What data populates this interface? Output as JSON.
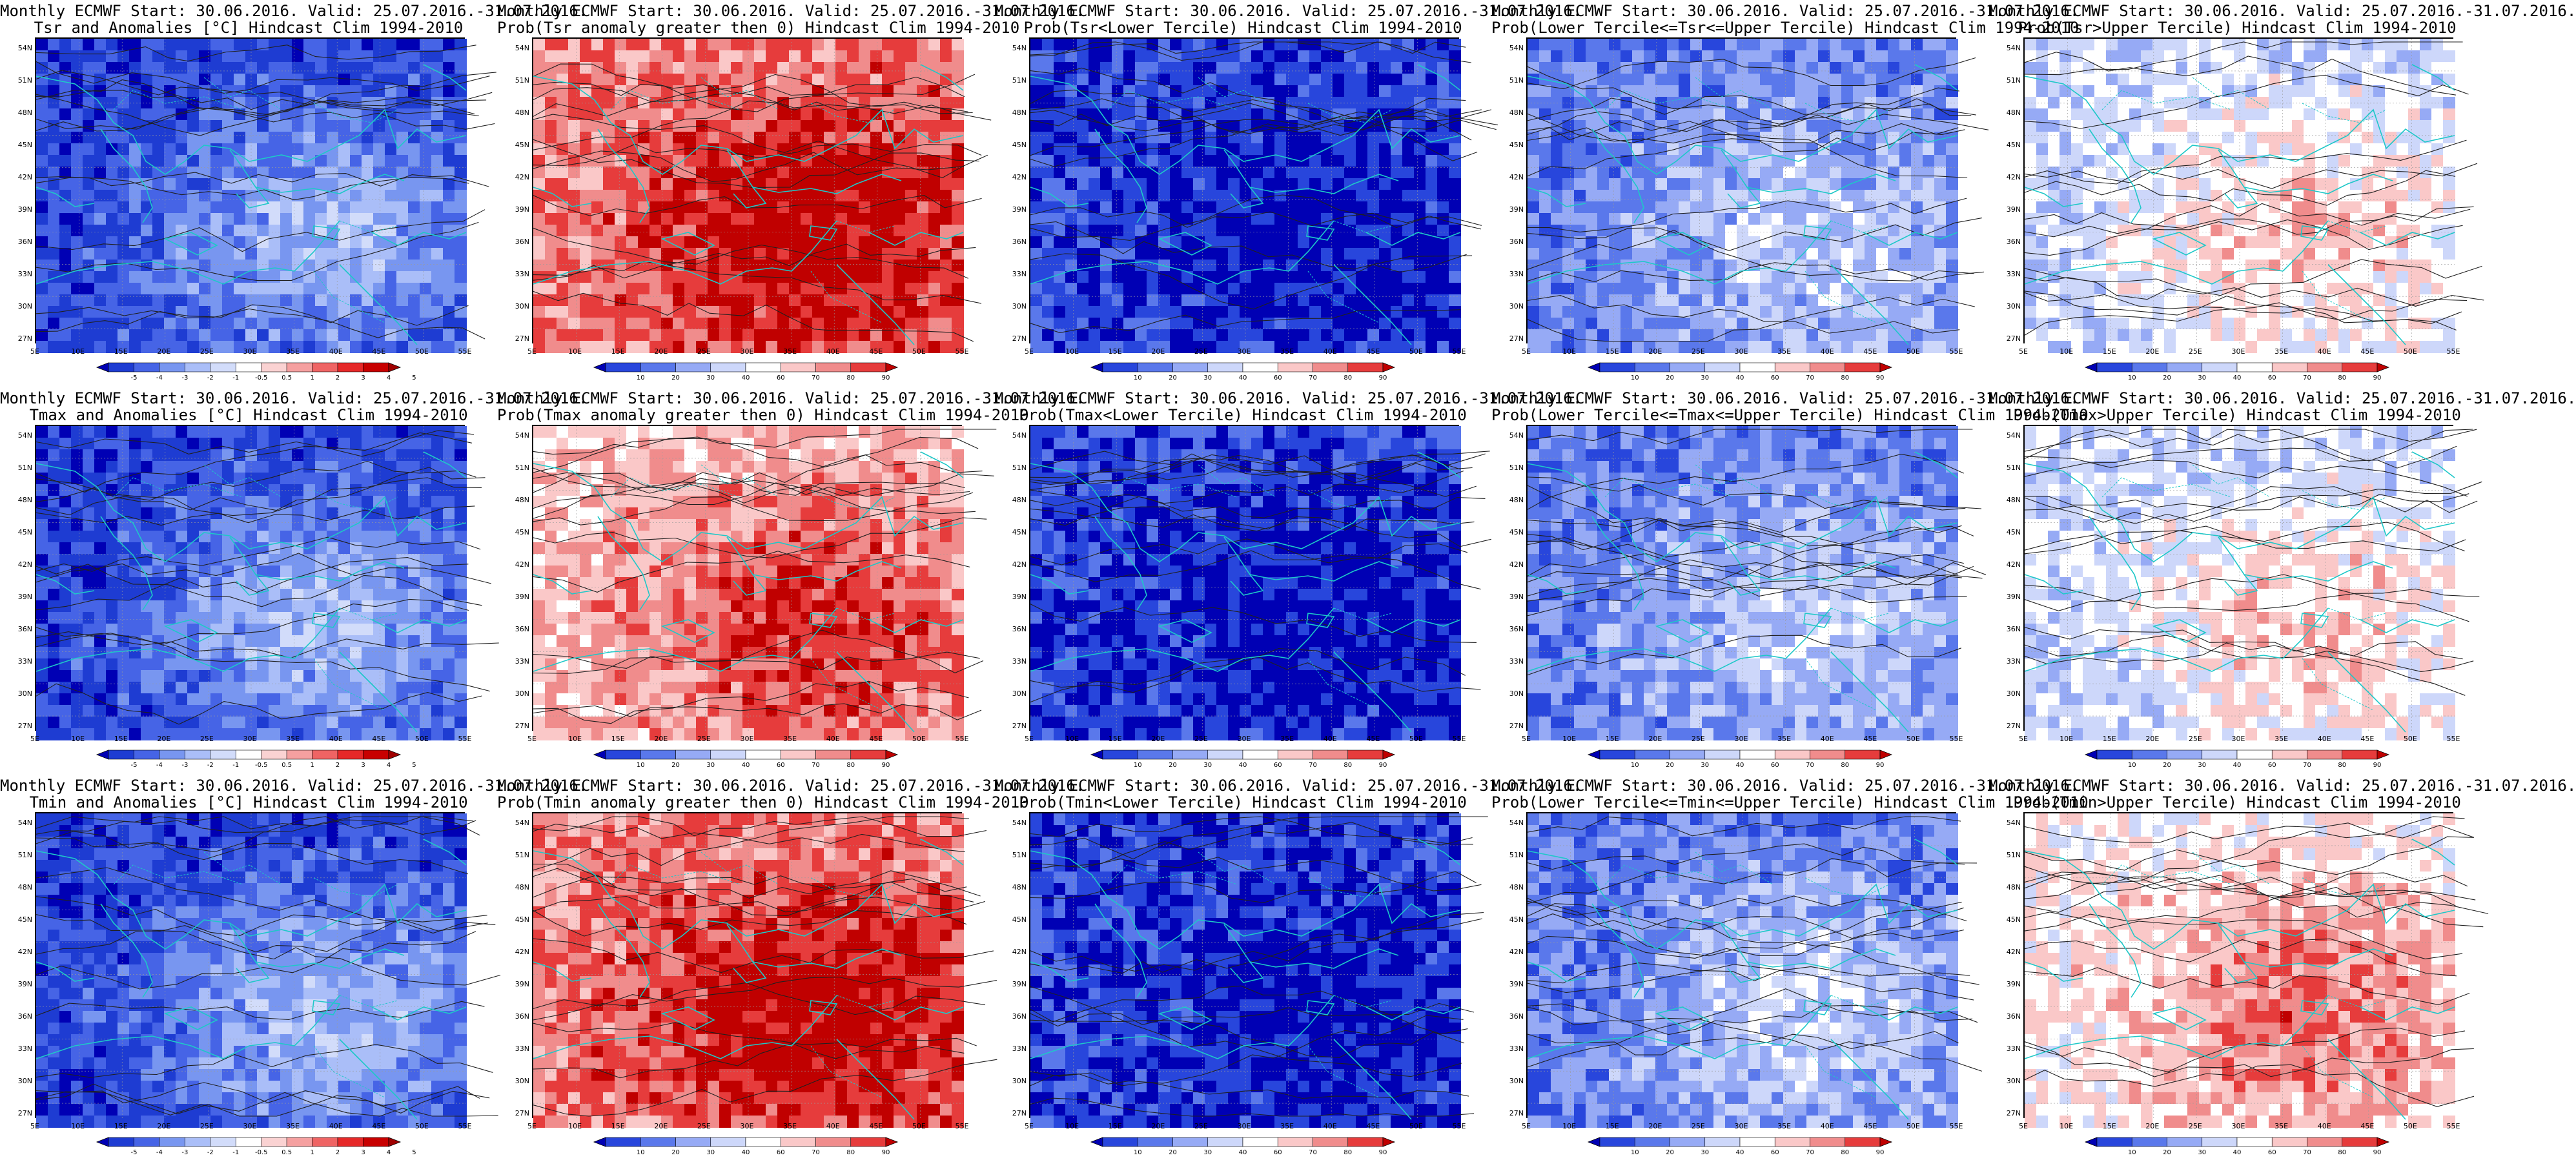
{
  "figure": {
    "rows": [
      {
        "variable": "Tsr",
        "panels": [
          {
            "title_line1": "Monthly ECMWF Start: 30.06.2016. Valid: 25.07.2016.-31.07.2016.",
            "title_line2": "Tsr and Anomalies [°C] Hindcast Clim 1994-2010",
            "scale": "anomaly",
            "mean_level": 1
          },
          {
            "title_line1": "Monthly ECMWF Start: 30.06.2016. Valid: 25.07.2016.-31.07.2016.",
            "title_line2": "Prob(Tsr anomaly greater then 0) Hindcast Clim 1994-2010",
            "scale": "probability",
            "mean_level": 7
          },
          {
            "title_line1": "Monthly ECMWF Start: 30.06.2016. Valid: 25.07.2016.-31.07.2016.",
            "title_line2": "Prob(Tsr<Lower Tercile) Hindcast Clim 1994-2010",
            "scale": "probability",
            "mean_level": 1
          },
          {
            "title_line1": "Monthly ECMWF Start: 30.06.2016. Valid: 25.07.2016.-31.07.2016.",
            "title_line2": "Prob(Lower Tercile<=Tsr<=Upper Tercile) Hindcast Clim 1994-2010",
            "scale": "probability",
            "mean_level": 2
          },
          {
            "title_line1": "Monthly ECMWF Start: 30.06.2016. Valid: 25.07.2016.-31.07.2016.",
            "title_line2": "Prob(Tsr>Upper Tercile) Hindcast Clim 1994-2010",
            "scale": "probability",
            "mean_level": 4
          }
        ]
      },
      {
        "variable": "Tmax",
        "panels": [
          {
            "title_line1": "Monthly ECMWF Start: 30.06.2016. Valid: 25.07.2016.-31.07.2016.",
            "title_line2": "Tmax and Anomalies [°C] Hindcast Clim 1994-2010",
            "scale": "anomaly",
            "mean_level": 1
          },
          {
            "title_line1": "Monthly ECMWF Start: 30.06.2016. Valid: 25.07.2016.-31.07.2016.",
            "title_line2": "Prob(Tmax anomaly greater then 0) Hindcast Clim 1994-2010",
            "scale": "probability",
            "mean_level": 6
          },
          {
            "title_line1": "Monthly ECMWF Start: 30.06.2016. Valid: 25.07.2016.-31.07.2016.",
            "title_line2": "Prob(Tmax<Lower Tercile) Hindcast Clim 1994-2010",
            "scale": "probability",
            "mean_level": 1
          },
          {
            "title_line1": "Monthly ECMWF Start: 30.06.2016. Valid: 25.07.2016.-31.07.2016.",
            "title_line2": "Prob(Lower Tercile<=Tmax<=Upper Tercile) Hindcast Clim 1994-2010",
            "scale": "probability",
            "mean_level": 2
          },
          {
            "title_line1": "Monthly ECMWF Start: 30.06.2016. Valid: 25.07.2016.-31.07.2016.",
            "title_line2": "Prob(Tmax>Upper Tercile) Hindcast Clim 1994-2010",
            "scale": "probability",
            "mean_level": 4
          }
        ]
      },
      {
        "variable": "Tmin",
        "panels": [
          {
            "title_line1": "Monthly ECMWF Start: 30.06.2016. Valid: 25.07.2016.-31.07.2016.",
            "title_line2": "Tmin and Anomalies [°C] Hindcast Clim 1994-2010",
            "scale": "anomaly",
            "mean_level": 1
          },
          {
            "title_line1": "Monthly ECMWF Start: 30.06.2016. Valid: 25.07.2016.-31.07.2016.",
            "title_line2": "Prob(Tmin anomaly greater then 0) Hindcast Clim 1994-2010",
            "scale": "probability",
            "mean_level": 7
          },
          {
            "title_line1": "Monthly ECMWF Start: 30.06.2016. Valid: 25.07.2016.-31.07.2016.",
            "title_line2": "Prob(Tmin<Lower Tercile) Hindcast Clim 1994-2010",
            "scale": "probability",
            "mean_level": 1
          },
          {
            "title_line1": "Monthly ECMWF Start: 30.06.2016. Valid: 25.07.2016.-31.07.2016.",
            "title_line2": "Prob(Lower Tercile<=Tmin<=Upper Tercile) Hindcast Clim 1994-2010",
            "scale": "probability",
            "mean_level": 2
          },
          {
            "title_line1": "Monthly ECMWF Start: 30.06.2016. Valid: 25.07.2016.-31.07.2016.",
            "title_line2": "Prob(Tmin>Upper Tercile) Hindcast Clim 1994-2010",
            "scale": "probability",
            "mean_level": 5
          }
        ]
      }
    ],
    "axes": {
      "lat_labels": [
        "54N",
        "51N",
        "48N",
        "45N",
        "42N",
        "39N",
        "36N",
        "33N",
        "30N",
        "27N"
      ],
      "lon_labels": [
        "5E",
        "10E",
        "15E",
        "20E",
        "25E",
        "30E",
        "35E",
        "40E",
        "45E",
        "50E",
        "55E"
      ]
    },
    "scales": {
      "anomaly": {
        "labels": [
          "-5",
          "-4",
          "-3",
          "-2",
          "-1",
          "-0.5",
          "0.5",
          "1",
          "2",
          "3",
          "4",
          "5"
        ],
        "colors": [
          "#0000b4",
          "#1e3cd2",
          "#4664e6",
          "#7896f0",
          "#aabef8",
          "#d2dcfa",
          "#ffffff",
          "#fad2d2",
          "#f5a0a0",
          "#ef6464",
          "#e62828",
          "#c80000",
          "#a00000"
        ]
      },
      "probability": {
        "labels": [
          "10",
          "20",
          "30",
          "40",
          "60",
          "70",
          "80",
          "90"
        ],
        "colors": [
          "#0000b4",
          "#2846dc",
          "#5a78eb",
          "#96aaf5",
          "#cdd7fa",
          "#ffffff",
          "#fac8c8",
          "#f08c8c",
          "#e63c3c",
          "#c00000"
        ]
      }
    },
    "map_colors": {
      "coastline": "#1ec8c8",
      "contour": "#202020",
      "gridline": "#9a9a9a"
    }
  }
}
